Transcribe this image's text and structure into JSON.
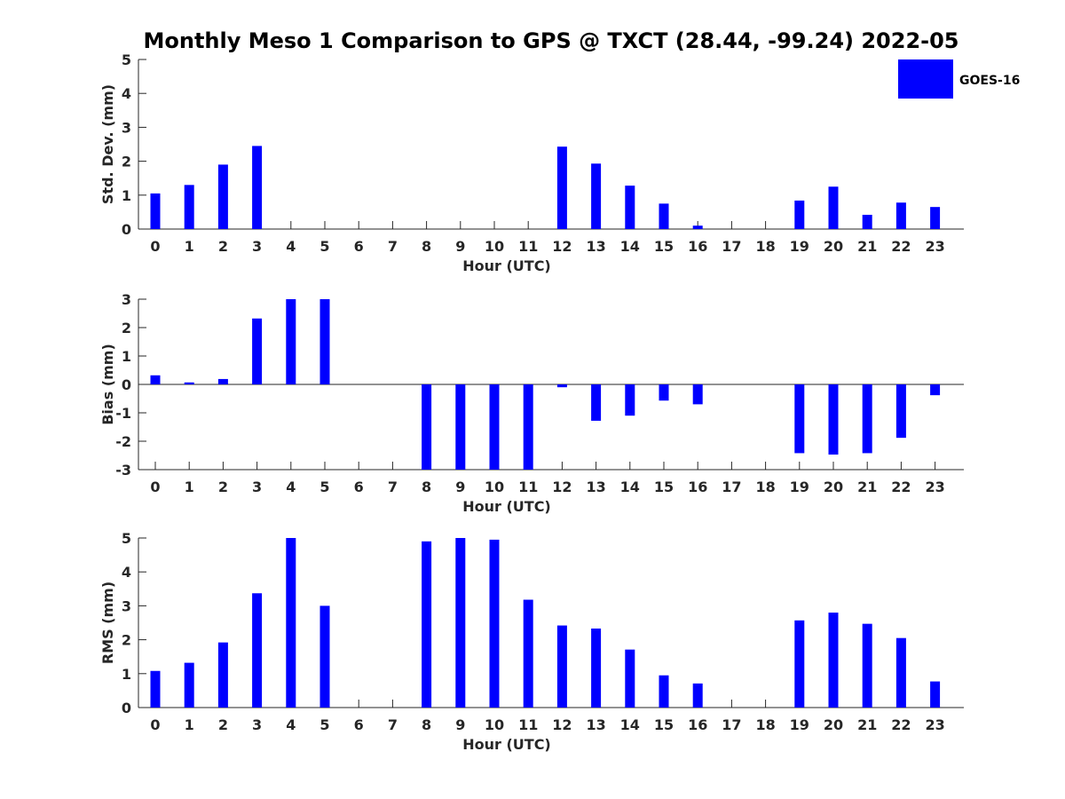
{
  "title": "Monthly Meso 1 Comparison to GPS @ TXCT (28.44, -99.24) 2022-05",
  "legend": {
    "label": "GOES-16",
    "color": "#0000ff",
    "placement": "top-right"
  },
  "chart_data": [
    {
      "type": "bar",
      "ylabel": "Std. Dev. (mm)",
      "xlabel": "Hour (UTC)",
      "categories": [
        "0",
        "1",
        "2",
        "3",
        "4",
        "5",
        "6",
        "7",
        "8",
        "9",
        "10",
        "11",
        "12",
        "13",
        "14",
        "15",
        "16",
        "17",
        "18",
        "19",
        "20",
        "21",
        "22",
        "23"
      ],
      "values": [
        1.05,
        1.3,
        1.9,
        2.45,
        null,
        null,
        null,
        null,
        null,
        null,
        null,
        null,
        2.43,
        1.93,
        1.28,
        0.75,
        0.1,
        null,
        null,
        0.84,
        1.25,
        0.42,
        0.78,
        0.65
      ],
      "ylim": [
        0,
        5
      ],
      "yticks": [
        0,
        1,
        2,
        3,
        4,
        5
      ],
      "series_name": "GOES-16",
      "grid": false
    },
    {
      "type": "bar",
      "ylabel": "Bias (mm)",
      "xlabel": "Hour (UTC)",
      "categories": [
        "0",
        "1",
        "2",
        "3",
        "4",
        "5",
        "6",
        "7",
        "8",
        "9",
        "10",
        "11",
        "12",
        "13",
        "14",
        "15",
        "16",
        "17",
        "18",
        "19",
        "20",
        "21",
        "22",
        "23"
      ],
      "values": [
        0.32,
        0.07,
        0.19,
        2.32,
        3.0,
        3.0,
        null,
        null,
        -3.0,
        -3.0,
        -3.0,
        -3.0,
        -0.1,
        -1.28,
        -1.1,
        -0.57,
        -0.7,
        null,
        null,
        -2.42,
        -2.47,
        -2.42,
        -1.88,
        -0.38
      ],
      "ylim": [
        -3,
        3
      ],
      "yticks": [
        -3,
        -2,
        -1,
        0,
        1,
        2,
        3
      ],
      "series_name": "GOES-16",
      "grid": false
    },
    {
      "type": "bar",
      "ylabel": "RMS (mm)",
      "xlabel": "Hour (UTC)",
      "categories": [
        "0",
        "1",
        "2",
        "3",
        "4",
        "5",
        "6",
        "7",
        "8",
        "9",
        "10",
        "11",
        "12",
        "13",
        "14",
        "15",
        "16",
        "17",
        "18",
        "19",
        "20",
        "21",
        "22",
        "23"
      ],
      "values": [
        1.08,
        1.32,
        1.92,
        3.37,
        5.0,
        3.0,
        null,
        null,
        4.9,
        5.0,
        4.95,
        3.18,
        2.42,
        2.33,
        1.71,
        0.95,
        0.71,
        null,
        null,
        2.57,
        2.8,
        2.47,
        2.05,
        0.77
      ],
      "ylim": [
        0,
        5
      ],
      "yticks": [
        0,
        1,
        2,
        3,
        4,
        5
      ],
      "series_name": "GOES-16",
      "grid": false
    }
  ]
}
